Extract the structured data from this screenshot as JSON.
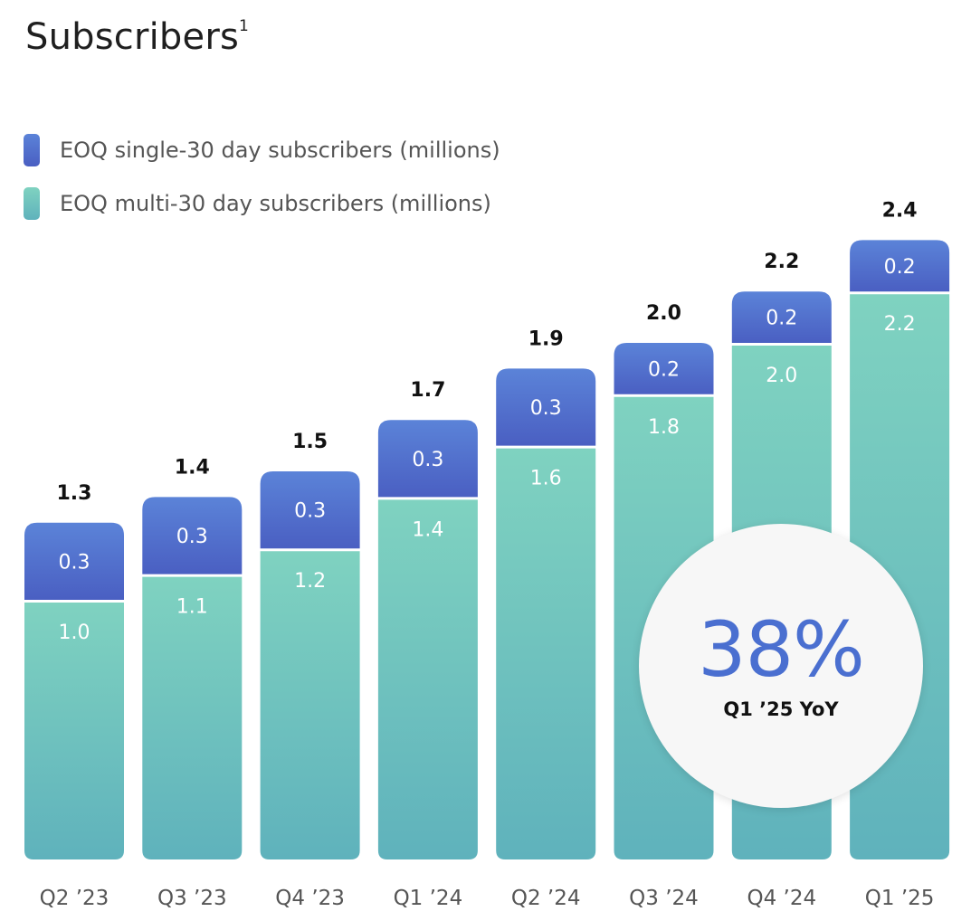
{
  "title": "Subscribers",
  "title_superscript": "1",
  "legend": {
    "single": "EOQ single-30 day subscribers (millions)",
    "multi": "EOQ multi-30 day subscribers  (millions)"
  },
  "colors": {
    "single_top": "#5b83d8",
    "single_bottom": "#4a5fc2",
    "multi_top": "#7fd2c0",
    "multi_bottom": "#5fb2bc"
  },
  "badge": {
    "value": "38%",
    "caption": "Q1 ’25 YoY"
  },
  "chart_data": {
    "type": "bar",
    "stacked": true,
    "categories": [
      "Q2 ’23",
      "Q3 ’23",
      "Q4 ’23",
      "Q1 ’24",
      "Q2 ’24",
      "Q3 ’24",
      "Q4 ’24",
      "Q1 ’25"
    ],
    "series": [
      {
        "name": "EOQ multi-30 day subscribers  (millions)",
        "values": [
          1.0,
          1.1,
          1.2,
          1.4,
          1.6,
          1.8,
          2.0,
          2.2
        ]
      },
      {
        "name": "EOQ single-30 day subscribers (millions)",
        "values": [
          0.3,
          0.3,
          0.3,
          0.3,
          0.3,
          0.2,
          0.2,
          0.2
        ]
      }
    ],
    "totals": [
      1.3,
      1.4,
      1.5,
      1.7,
      1.9,
      2.0,
      2.2,
      2.4
    ],
    "segment_labels": {
      "multi": [
        "1.0",
        "1.1",
        "1.2",
        "1.4",
        "1.6",
        "1.8",
        "2.0",
        "2.2"
      ],
      "single": [
        "0.3",
        "0.3",
        "0.3",
        "0.3",
        "0.3",
        "0.2",
        "0.2",
        "0.2"
      ]
    },
    "total_labels": [
      "1.3",
      "1.4",
      "1.5",
      "1.7",
      "1.9",
      "2.0",
      "2.2",
      "2.4"
    ],
    "legend_position": "top-left",
    "grid": false
  }
}
